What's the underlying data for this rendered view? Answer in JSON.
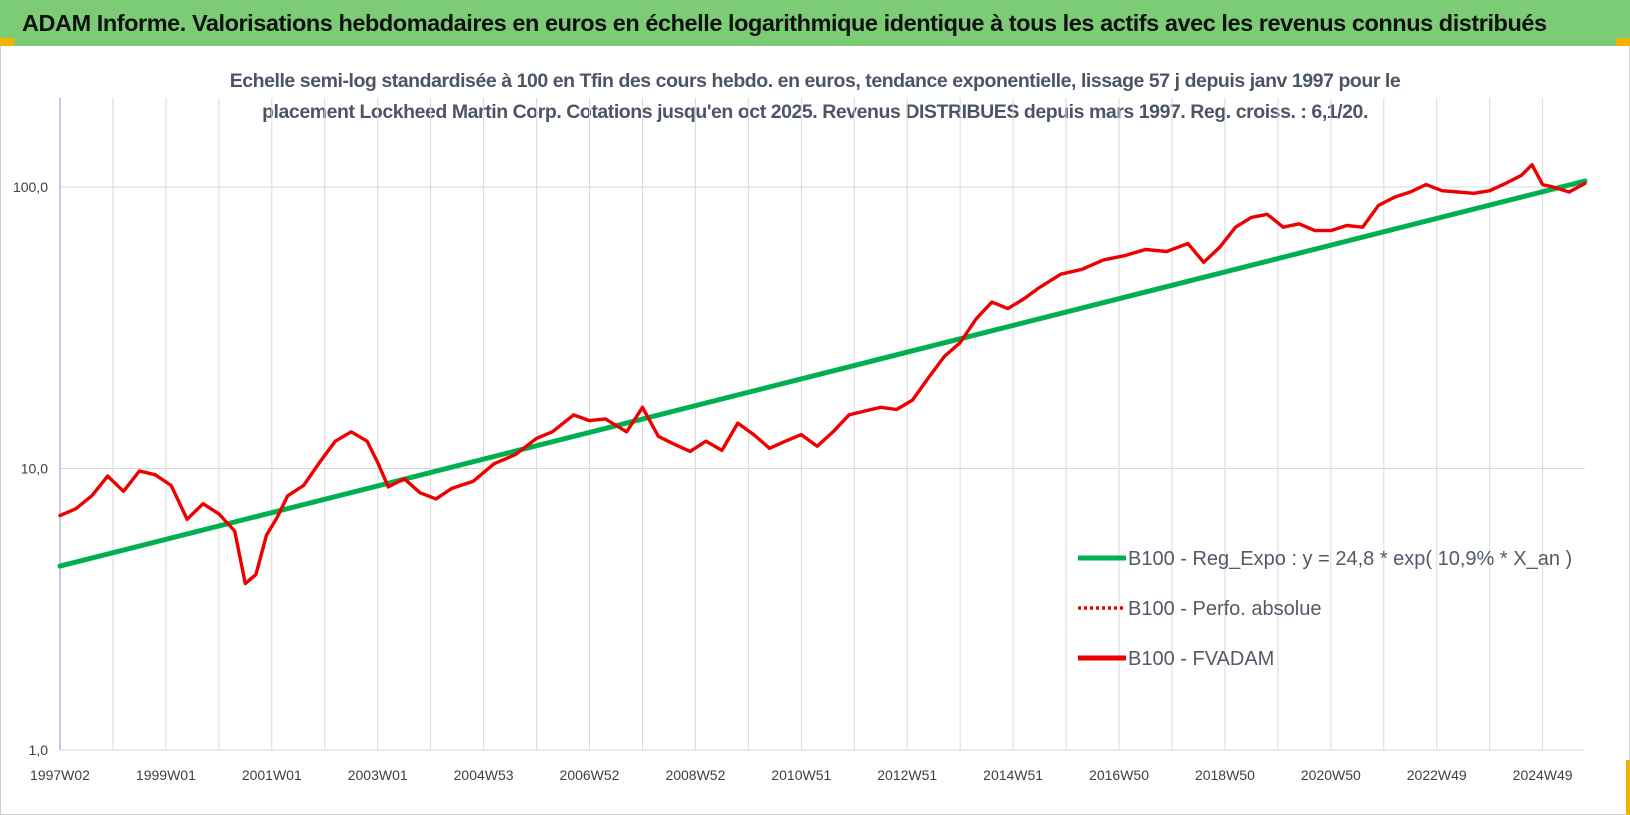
{
  "header": {
    "title": "ADAM Informe. Valorisations hebdomadaires en euros en échelle logarithmique identique à tous les actifs avec les revenus connus distribués"
  },
  "colors": {
    "banner": "#7ccc76",
    "trend": "#00b050",
    "series": "#ee0000",
    "grid": "#d9d9d9",
    "axis": "#8faadc",
    "corner": "#f2b300"
  },
  "chart_data": {
    "type": "line",
    "title_line1": "Echelle semi-log standardisée à 100 en Tfin des cours hebdo. en euros, tendance exponentielle, lissage 57 j depuis janv 1997 pour le",
    "title_line2": "placement Lockheed Martin Corp. Cotations jusqu'en oct 2025. Revenus DISTRIBUES depuis mars 1997. Reg. croiss. : 6,1/20.",
    "y_scale": "log",
    "ylim": [
      1,
      200
    ],
    "xlim": [
      1997.0,
      2025.8
    ],
    "grid": true,
    "legend_position": "center-right",
    "y_ticks": [
      {
        "value": 1,
        "label": "1,0"
      },
      {
        "value": 10,
        "label": "10,0"
      },
      {
        "value": 100,
        "label": "100,0"
      }
    ],
    "x_ticks": [
      {
        "value": 1997.0,
        "label": "1997W02"
      },
      {
        "value": 1999.0,
        "label": "1999W01"
      },
      {
        "value": 2001.0,
        "label": "2001W01"
      },
      {
        "value": 2003.0,
        "label": "2003W01"
      },
      {
        "value": 2005.0,
        "label": "2004W53"
      },
      {
        "value": 2007.0,
        "label": "2006W52"
      },
      {
        "value": 2009.0,
        "label": "2008W52"
      },
      {
        "value": 2011.0,
        "label": "2010W51"
      },
      {
        "value": 2013.0,
        "label": "2012W51"
      },
      {
        "value": 2015.0,
        "label": "2014W51"
      },
      {
        "value": 2017.0,
        "label": "2016W50"
      },
      {
        "value": 2019.0,
        "label": "2018W50"
      },
      {
        "value": 2021.0,
        "label": "2020W50"
      },
      {
        "value": 2023.0,
        "label": "2022W49"
      },
      {
        "value": 2025.0,
        "label": "2024W49"
      }
    ],
    "series": [
      {
        "name": "B100 - Reg_Expo : y = 24,8 * exp( 10,9% *  X_an )",
        "style": "solid-green",
        "x": [
          1997.0,
          2025.8
        ],
        "y": [
          4.5,
          105
        ]
      },
      {
        "name": "B100 - Perfo. absolue",
        "style": "dotted-red",
        "x": [],
        "y": []
      },
      {
        "name": "B100 - FVADAM",
        "style": "solid-red",
        "x": [
          1997.0,
          1997.3,
          1997.6,
          1997.9,
          1998.2,
          1998.5,
          1998.8,
          1999.1,
          1999.4,
          1999.7,
          2000.0,
          2000.3,
          2000.5,
          2000.7,
          2000.9,
          2001.1,
          2001.3,
          2001.6,
          2001.9,
          2002.2,
          2002.5,
          2002.8,
          2003.0,
          2003.2,
          2003.5,
          2003.8,
          2004.1,
          2004.4,
          2004.8,
          2005.2,
          2005.6,
          2006.0,
          2006.3,
          2006.7,
          2007.0,
          2007.3,
          2007.7,
          2008.0,
          2008.3,
          2008.6,
          2008.9,
          2009.2,
          2009.5,
          2009.8,
          2010.1,
          2010.4,
          2010.7,
          2011.0,
          2011.3,
          2011.6,
          2011.9,
          2012.2,
          2012.5,
          2012.8,
          2013.1,
          2013.4,
          2013.7,
          2014.0,
          2014.3,
          2014.6,
          2014.9,
          2015.2,
          2015.5,
          2015.9,
          2016.3,
          2016.7,
          2017.1,
          2017.5,
          2017.9,
          2018.3,
          2018.6,
          2018.9,
          2019.2,
          2019.5,
          2019.8,
          2020.1,
          2020.4,
          2020.7,
          2021.0,
          2021.3,
          2021.6,
          2021.9,
          2022.2,
          2022.5,
          2022.8,
          2023.1,
          2023.4,
          2023.7,
          2024.0,
          2024.3,
          2024.6,
          2024.8,
          2025.0,
          2025.2,
          2025.5,
          2025.8
        ],
        "y": [
          6.8,
          7.2,
          8.0,
          9.4,
          8.3,
          9.8,
          9.5,
          8.7,
          6.6,
          7.5,
          6.9,
          6.0,
          3.9,
          4.2,
          5.8,
          6.7,
          8.0,
          8.7,
          10.5,
          12.5,
          13.5,
          12.5,
          10.5,
          8.6,
          9.2,
          8.2,
          7.8,
          8.5,
          9.0,
          10.4,
          11.2,
          12.8,
          13.5,
          15.5,
          14.8,
          15.0,
          13.5,
          16.5,
          13.0,
          12.2,
          11.5,
          12.5,
          11.6,
          14.5,
          13.2,
          11.8,
          12.5,
          13.2,
          12.0,
          13.5,
          15.5,
          16.0,
          16.5,
          16.2,
          17.5,
          21.0,
          25.0,
          28.0,
          34.0,
          39.0,
          37.0,
          40.0,
          44.0,
          49.0,
          51.0,
          55.0,
          57.0,
          60.0,
          59.0,
          63.0,
          54.0,
          61.0,
          72.0,
          78.0,
          80.0,
          72.0,
          74.0,
          70.0,
          70.0,
          73.0,
          72.0,
          86.0,
          92.0,
          96.0,
          102.0,
          97.0,
          96.0,
          95.0,
          97.0,
          103.0,
          110.0,
          120.0,
          102.0,
          100.0,
          96.0,
          103.0
        ]
      }
    ]
  }
}
